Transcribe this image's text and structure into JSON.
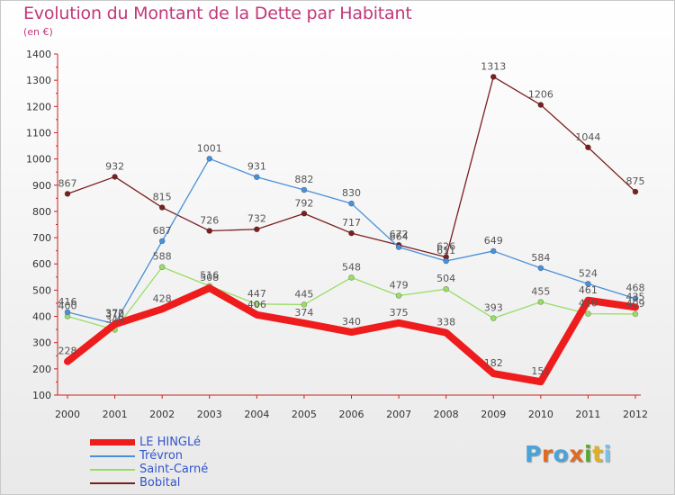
{
  "header": {
    "title": "Evolution du Montant de la Dette par Habitant",
    "subtitle": "(en €)"
  },
  "logo": {
    "text": "Proxiti",
    "letter_colors": [
      "#4aa3d9",
      "#e06b22",
      "#4aa3d9",
      "#e06b22",
      "#5aa832",
      "#e0b020",
      "#7cc0e8"
    ]
  },
  "chart_data": {
    "type": "line",
    "title": "Evolution du Montant de la Dette par Habitant",
    "subtitle": "(en €)",
    "xlabel": "",
    "ylabel": "",
    "x": [
      "2000",
      "2001",
      "2002",
      "2003",
      "2004",
      "2005",
      "2006",
      "2007",
      "2008",
      "2009",
      "2010",
      "2011",
      "2012"
    ],
    "ylim": [
      100,
      1400
    ],
    "yticks": [
      100,
      200,
      300,
      400,
      500,
      600,
      700,
      800,
      900,
      1000,
      1100,
      1200,
      1300,
      1400
    ],
    "grid": false,
    "legend_position": "bottom-left",
    "series": [
      {
        "name": "LE HINGLé",
        "color": "#ee1c1c",
        "values": [
          228,
          370,
          428,
          508,
          406,
          374,
          340,
          375,
          338,
          182,
          151,
          461,
          435
        ]
      },
      {
        "name": "Trévron",
        "color": "#4a90d9",
        "values": [
          416,
          372,
          687,
          1001,
          931,
          882,
          830,
          664,
          611,
          649,
          584,
          524,
          468
        ]
      },
      {
        "name": "Saint-Carné",
        "color": "#99dd66",
        "values": [
          400,
          349,
          588,
          516,
          447,
          445,
          548,
          479,
          504,
          393,
          455,
          410,
          409
        ]
      },
      {
        "name": "Bobital",
        "color": "#7a1f1f",
        "values": [
          867,
          932,
          815,
          726,
          732,
          792,
          717,
          672,
          626,
          1313,
          1206,
          1044,
          875
        ]
      }
    ]
  }
}
